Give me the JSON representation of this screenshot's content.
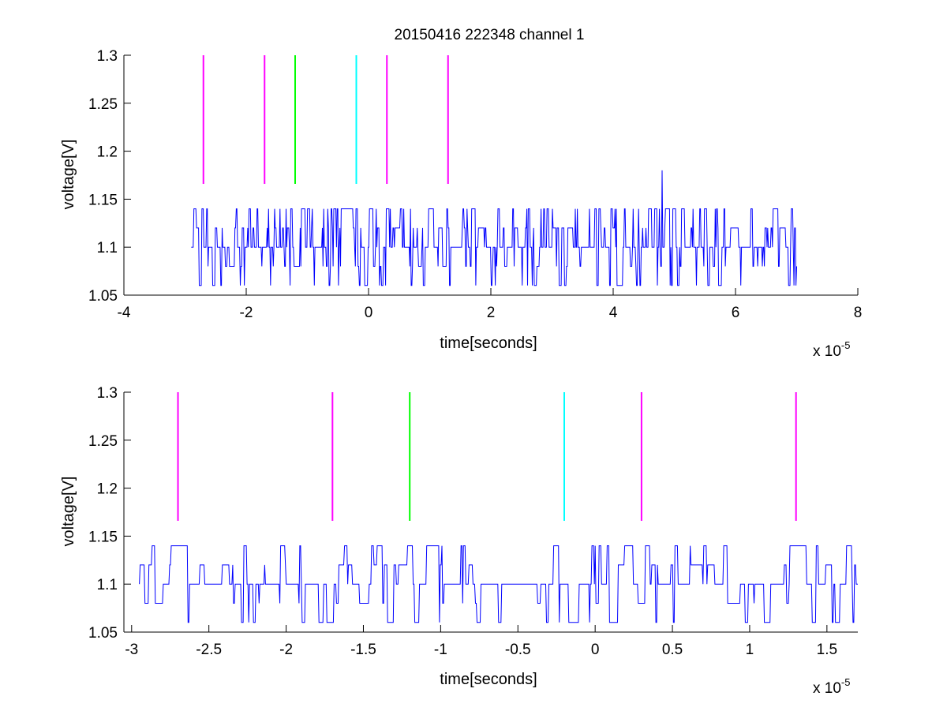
{
  "figure_title": "20150416 222348 channel 1",
  "colors": {
    "signal": "#0000ff",
    "marker_magenta": "#ff00ff",
    "marker_green": "#00ff00",
    "marker_cyan": "#00ffff",
    "axis": "#000000"
  },
  "chart_data": [
    {
      "type": "line",
      "title": "20150416 222348 channel 1",
      "xlabel": "time[seconds]",
      "ylabel": "voltage[V]",
      "x_multiplier_label": "x 10",
      "x_multiplier_exponent": "-5",
      "xlim": [
        -4,
        8
      ],
      "ylim": [
        1.05,
        1.3
      ],
      "xticks": [
        "-4",
        "-2",
        "0",
        "2",
        "4",
        "6",
        "8"
      ],
      "xtick_values": [
        -4,
        -2,
        0,
        2,
        4,
        6,
        8
      ],
      "yticks": [
        "1.05",
        "1.1",
        "1.15",
        "1.2",
        "1.25",
        "1.3"
      ],
      "ytick_values": [
        1.05,
        1.1,
        1.15,
        1.2,
        1.25,
        1.3
      ],
      "grid": false,
      "signal_x_range": [
        -2.9,
        7.0
      ],
      "signal_levels": [
        1.06,
        1.08,
        1.1,
        1.12,
        1.14
      ],
      "signal_baseline": 1.1,
      "signal_spike": {
        "x": 4.8,
        "y": 1.18
      },
      "markers": [
        {
          "x": -2.7,
          "color": "magenta",
          "y_from": 1.166,
          "y_to": 1.3
        },
        {
          "x": -1.7,
          "color": "magenta",
          "y_from": 1.166,
          "y_to": 1.3
        },
        {
          "x": -1.2,
          "color": "green",
          "y_from": 1.166,
          "y_to": 1.3
        },
        {
          "x": -0.2,
          "color": "cyan",
          "y_from": 1.166,
          "y_to": 1.3
        },
        {
          "x": 0.3,
          "color": "magenta",
          "y_from": 1.166,
          "y_to": 1.3
        },
        {
          "x": 1.3,
          "color": "magenta",
          "y_from": 1.166,
          "y_to": 1.3
        }
      ]
    },
    {
      "type": "line",
      "title": "",
      "xlabel": "time[seconds]",
      "ylabel": "voltage[V]",
      "x_multiplier_label": "x 10",
      "x_multiplier_exponent": "-5",
      "xlim": [
        -3.05,
        1.7
      ],
      "ylim": [
        1.05,
        1.3
      ],
      "xticks": [
        "-3",
        "-2.5",
        "-2",
        "-1.5",
        "-1",
        "-0.5",
        "0",
        "0.5",
        "1",
        "1.5"
      ],
      "xtick_values": [
        -3,
        -2.5,
        -2,
        -1.5,
        -1,
        -0.5,
        0,
        0.5,
        1,
        1.5
      ],
      "yticks": [
        "1.05",
        "1.1",
        "1.15",
        "1.2",
        "1.25",
        "1.3"
      ],
      "ytick_values": [
        1.05,
        1.1,
        1.15,
        1.2,
        1.25,
        1.3
      ],
      "grid": false,
      "signal_x_range": [
        -2.95,
        1.7
      ],
      "signal_levels": [
        1.06,
        1.08,
        1.1,
        1.12,
        1.14
      ],
      "signal_baseline": 1.1,
      "markers": [
        {
          "x": -2.7,
          "color": "magenta",
          "y_from": 1.166,
          "y_to": 1.3
        },
        {
          "x": -1.7,
          "color": "magenta",
          "y_from": 1.166,
          "y_to": 1.3
        },
        {
          "x": -1.2,
          "color": "green",
          "y_from": 1.166,
          "y_to": 1.3
        },
        {
          "x": -0.2,
          "color": "cyan",
          "y_from": 1.166,
          "y_to": 1.3
        },
        {
          "x": 0.3,
          "color": "magenta",
          "y_from": 1.166,
          "y_to": 1.3
        },
        {
          "x": 1.3,
          "color": "magenta",
          "y_from": 1.166,
          "y_to": 1.3
        }
      ]
    }
  ]
}
